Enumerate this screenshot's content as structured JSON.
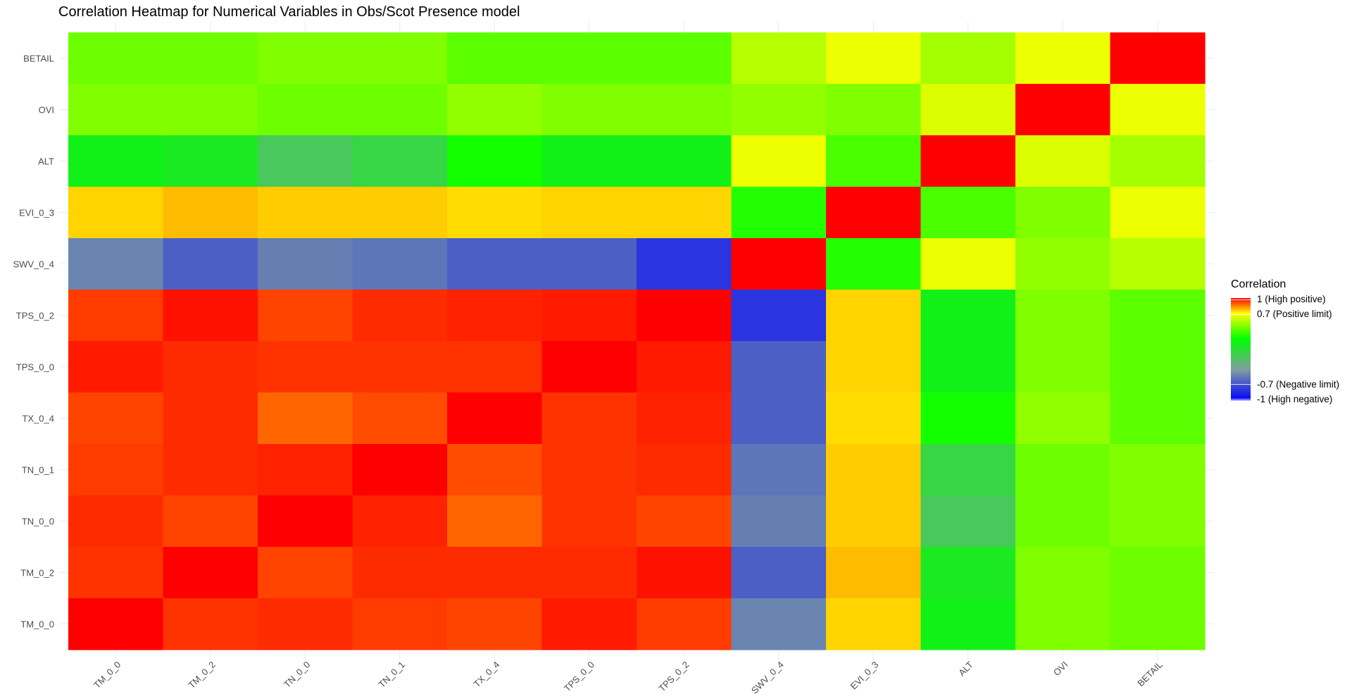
{
  "chart_data": {
    "type": "heatmap",
    "title": "Correlation Heatmap for Numerical Variables in Obs/Scot Presence model",
    "x_labels": [
      "TM_0_0",
      "TM_0_2",
      "TN_0_0",
      "TN_0_1",
      "TX_0_4",
      "TPS_0_0",
      "TPS_0_2",
      "SWV_0_4",
      "EVI_0_3",
      "ALT",
      "OVI",
      "BETAIL"
    ],
    "y_labels_top_to_bottom": [
      "BETAIL",
      "OVI",
      "ALT",
      "EVI_0_3",
      "SWV_0_4",
      "TPS_0_2",
      "TPS_0_0",
      "TX_0_4",
      "TN_0_1",
      "TN_0_0",
      "TM_0_2",
      "TM_0_0"
    ],
    "matrix": [
      [
        0.3,
        0.3,
        0.35,
        0.35,
        0.25,
        0.25,
        0.25,
        0.5,
        0.65,
        0.45,
        0.65,
        1.0
      ],
      [
        0.35,
        0.35,
        0.3,
        0.3,
        0.4,
        0.35,
        0.35,
        0.4,
        0.35,
        0.6,
        1.0,
        0.65
      ],
      [
        -0.1,
        -0.15,
        -0.4,
        -0.3,
        0.05,
        -0.1,
        -0.1,
        0.65,
        0.2,
        1.0,
        0.6,
        0.45
      ],
      [
        0.75,
        0.78,
        0.76,
        0.76,
        0.74,
        0.75,
        0.75,
        0.1,
        1.0,
        0.2,
        0.35,
        0.65
      ],
      [
        -0.75,
        -0.82,
        -0.76,
        -0.78,
        -0.82,
        -0.82,
        -0.9,
        1.0,
        0.1,
        0.65,
        0.4,
        0.5
      ],
      [
        0.93,
        0.98,
        0.92,
        0.95,
        0.96,
        0.97,
        1.0,
        -0.9,
        0.75,
        -0.1,
        0.35,
        0.25
      ],
      [
        0.97,
        0.95,
        0.94,
        0.94,
        0.94,
        1.0,
        0.97,
        -0.82,
        0.75,
        -0.1,
        0.35,
        0.25
      ],
      [
        0.92,
        0.95,
        0.88,
        0.91,
        1.0,
        0.94,
        0.96,
        -0.82,
        0.74,
        0.05,
        0.4,
        0.25
      ],
      [
        0.93,
        0.95,
        0.96,
        1.0,
        0.91,
        0.94,
        0.95,
        -0.78,
        0.76,
        -0.3,
        0.3,
        0.35
      ],
      [
        0.95,
        0.92,
        1.0,
        0.96,
        0.88,
        0.94,
        0.92,
        -0.76,
        0.76,
        -0.4,
        0.3,
        0.35
      ],
      [
        0.94,
        1.0,
        0.92,
        0.95,
        0.95,
        0.95,
        0.98,
        -0.82,
        0.78,
        -0.15,
        0.35,
        0.3
      ],
      [
        1.0,
        0.94,
        0.95,
        0.93,
        0.92,
        0.97,
        0.93,
        -0.75,
        0.75,
        -0.1,
        0.35,
        0.3
      ]
    ],
    "scale": {
      "min": -1,
      "max": 1,
      "low_color": "#0000ff",
      "neg_limit_color": "#7f9f9f",
      "mid_color": "#00ff00",
      "pos_limit_color": "#ffff00",
      "high_color": "#ff0000"
    },
    "legend": {
      "title": "Correlation",
      "labels": [
        "1 (High positive)",
        "0.7 (Positive limit)",
        "-0.7 (Negative limit)",
        "-1 (High negative)"
      ],
      "placement": "right"
    }
  }
}
